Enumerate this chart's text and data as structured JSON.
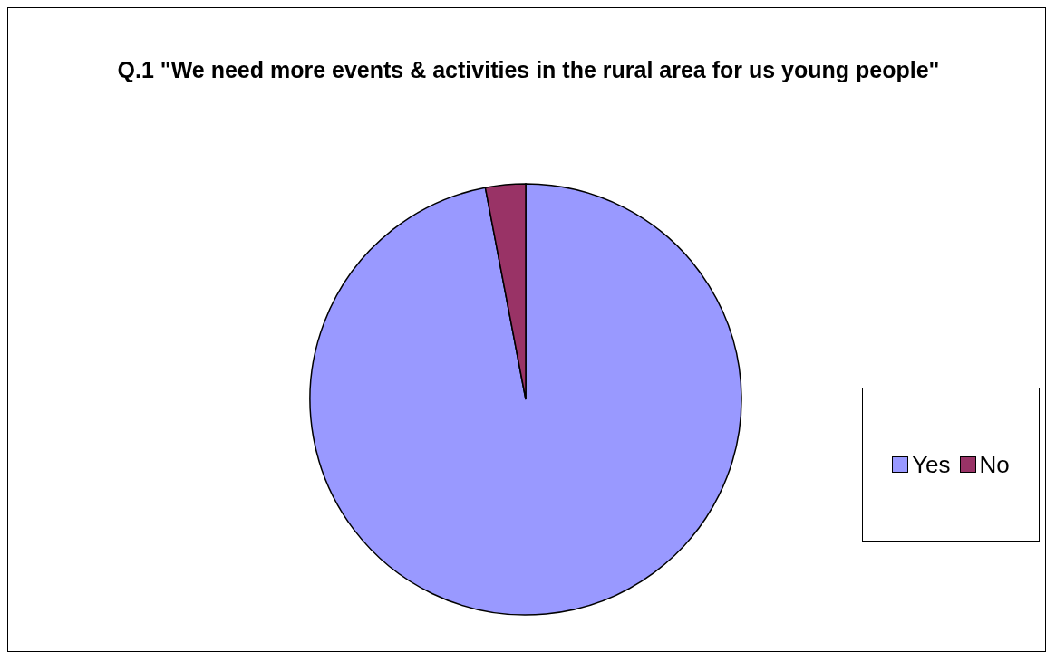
{
  "chart_data": {
    "type": "pie",
    "title": "Q.1 \"We need more events & activities in the rural area for us young people\"",
    "categories": [
      "Yes",
      "No"
    ],
    "values": [
      97,
      3
    ],
    "colors": [
      "#9999ff",
      "#993366"
    ],
    "legend": "right"
  }
}
